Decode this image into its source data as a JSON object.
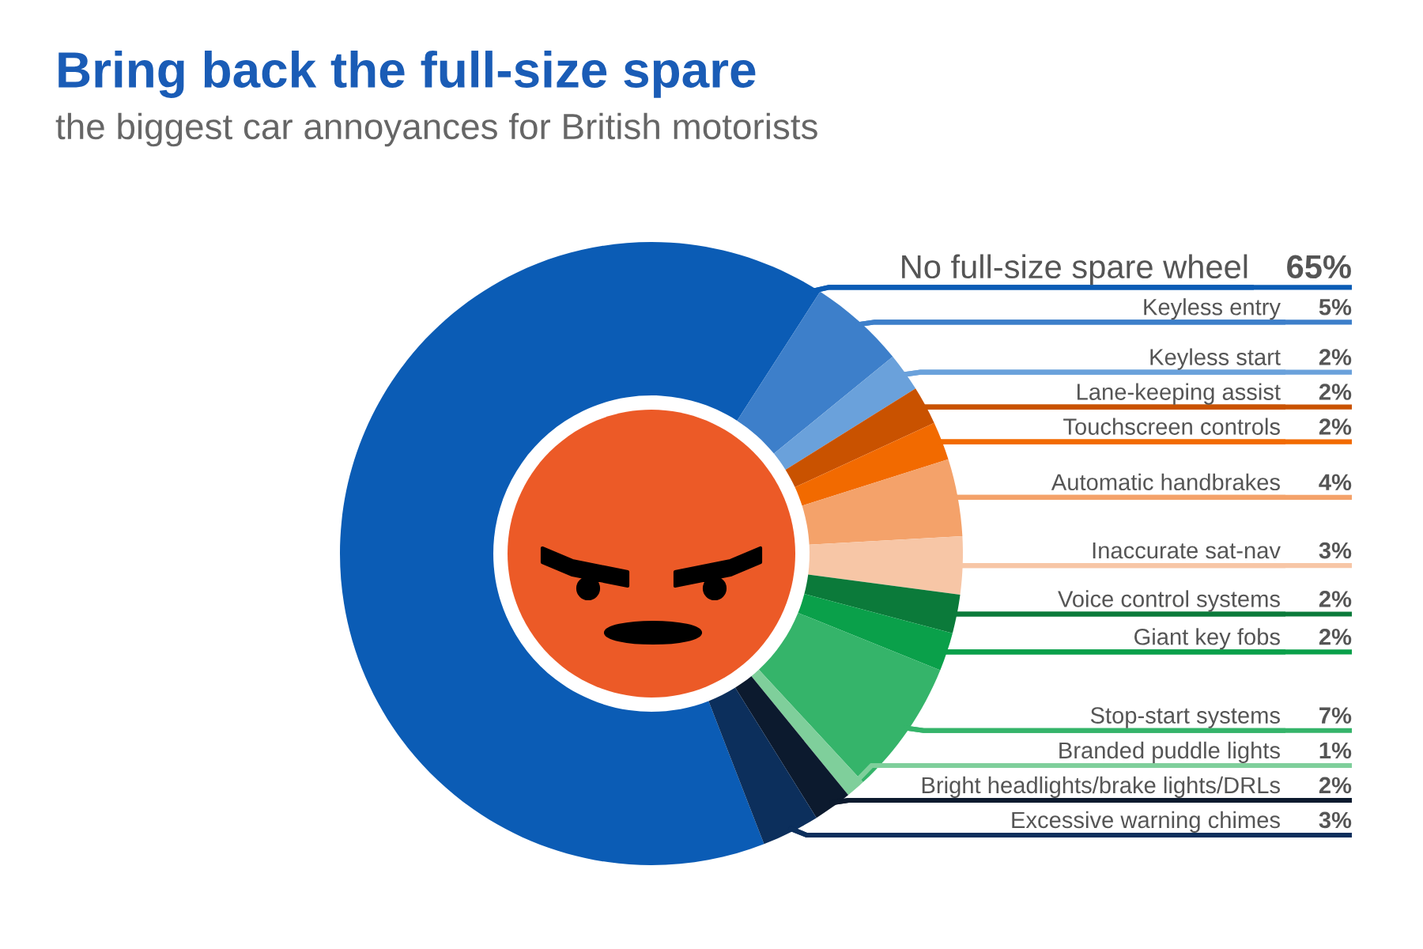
{
  "chart_data": {
    "type": "donut",
    "title": "Bring back the full-size spare",
    "subtitle": "the biggest car annoyances for British motorists",
    "categories": [
      "No full-size spare wheel",
      "Keyless entry",
      "Keyless start",
      "Lane-keeping assist",
      "Touchscreen controls",
      "Automatic handbrakes",
      "Inaccurate sat-nav",
      "Voice control systems",
      "Giant key fobs",
      "Stop-start systems",
      "Branded puddle lights",
      "Bright headlights/brake lights/DRLs",
      "Excessive warning chimes"
    ],
    "values": [
      65,
      5,
      2,
      2,
      2,
      4,
      3,
      2,
      2,
      7,
      1,
      2,
      3
    ],
    "colors": [
      "#0b5cb5",
      "#3d7fca",
      "#6aa1db",
      "#c95200",
      "#f26a00",
      "#f4a26a",
      "#f7c6a6",
      "#0b7a3a",
      "#0aa04a",
      "#35b46a",
      "#7fcf9b",
      "#0c1a2e",
      "#0c2f5c"
    ],
    "value_labels": [
      "65%",
      "5%",
      "2%",
      "2%",
      "2%",
      "4%",
      "3%",
      "2%",
      "2%",
      "7%",
      "1%",
      "2%",
      "3%"
    ]
  }
}
